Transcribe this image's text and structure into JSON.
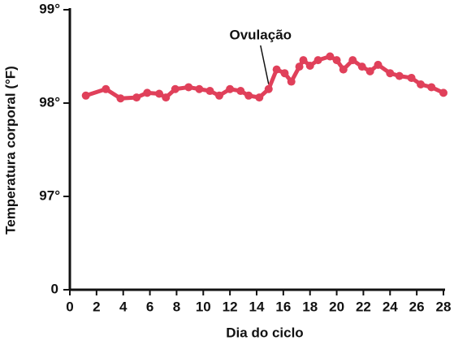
{
  "chart_data": {
    "type": "line",
    "x_label": "Dia do ciclo",
    "y_label": "Temperatura corporal (°F)",
    "annotation": {
      "text": "Ovulação",
      "x": 14.9,
      "y": 98.15
    },
    "xlim": [
      0,
      28
    ],
    "xticks": [
      0,
      2,
      4,
      6,
      8,
      10,
      12,
      14,
      16,
      18,
      20,
      22,
      24,
      26,
      28
    ],
    "ylim": [
      96,
      99
    ],
    "y_origin_tick": 0,
    "yticks": [
      {
        "value": 97,
        "label": "97°"
      },
      {
        "value": 98,
        "label": "98°"
      },
      {
        "value": 99,
        "label": "99°"
      }
    ],
    "grid": false,
    "series": [
      {
        "color": "#e0405a",
        "x": [
          1.2,
          2.7,
          3.8,
          5,
          5.8,
          6.7,
          7.2,
          7.9,
          8.9,
          9.7,
          10.5,
          11.2,
          12,
          12.8,
          13.4,
          14.2,
          14.9,
          15.5,
          16.1,
          16.6,
          17.2,
          17.5,
          18,
          18.6,
          19.5,
          20,
          20.5,
          21.2,
          21.9,
          22.5,
          23.1,
          24,
          24.7,
          25.6,
          26.3,
          27.1,
          28
        ],
        "values": [
          98.08,
          98.15,
          98.05,
          98.06,
          98.11,
          98.1,
          98.06,
          98.15,
          98.17,
          98.15,
          98.13,
          98.08,
          98.15,
          98.13,
          98.08,
          98.06,
          98.15,
          98.36,
          98.32,
          98.23,
          98.39,
          98.46,
          98.4,
          98.46,
          98.5,
          98.46,
          98.36,
          98.46,
          98.39,
          98.34,
          98.41,
          98.32,
          98.29,
          98.27,
          98.2,
          98.17,
          98.11
        ]
      }
    ]
  }
}
